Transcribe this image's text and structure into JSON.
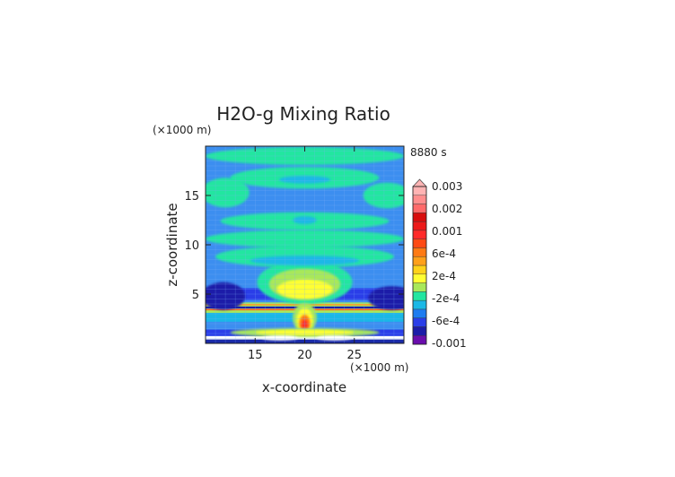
{
  "chart_data": {
    "type": "heatmap",
    "title": "H2O-g Mixing Ratio",
    "time_label": "8880 s",
    "x_unit": "(×1000 m)",
    "y_unit": "(×1000 m)",
    "xlabel": "x-coordinate",
    "ylabel": "z-coordinate",
    "xlim": [
      10,
      30
    ],
    "ylim": [
      0,
      20
    ],
    "x_ticks": [
      "15",
      "20",
      "25"
    ],
    "y_ticks": [
      "5",
      "10",
      "15"
    ],
    "colorbar": {
      "labels": [
        "0.003",
        "0.002",
        "0.001",
        "6e-4",
        "2e-4",
        "-2e-4",
        "-6e-4",
        "-0.001"
      ],
      "colors": [
        "#6a0dad",
        "#1c1ca8",
        "#2a3ee8",
        "#1e7cf0",
        "#1ab8e6",
        "#22e6a0",
        "#a8e85a",
        "#ffff33",
        "#ffd21a",
        "#ffa01a",
        "#ff7a14",
        "#ff4a14",
        "#ff2a2a",
        "#ec1a1a",
        "#d80e0e",
        "#ff6a6a",
        "#ff8e8e",
        "#ffb4b4"
      ]
    },
    "field": {
      "background": "#3c8ef0",
      "bands": [
        {
          "name": "surface-white",
          "z": [
            0.35,
            0.75
          ],
          "color": "#ffffff"
        },
        {
          "name": "surface-low",
          "z": [
            0.0,
            0.4
          ],
          "color": "#1a2aa8"
        },
        {
          "name": "low-blue",
          "z": [
            0.75,
            1.4
          ],
          "color": "#2a3ee8"
        },
        {
          "name": "cyan-lower",
          "z": [
            2.2,
            3.1
          ],
          "color": "#1ab8e6"
        },
        {
          "name": "band-3",
          "z": [
            3.1,
            3.55
          ],
          "color": "#a8e85a"
        },
        {
          "name": "band-3b",
          "z": [
            3.35,
            3.5
          ],
          "color": "#ff7a14"
        },
        {
          "name": "band-3c",
          "z": [
            3.42,
            3.48
          ],
          "color": "#ff2a2a"
        },
        {
          "name": "band-4",
          "z": [
            3.55,
            3.75
          ],
          "color": "#1c1ca8"
        },
        {
          "name": "band-5",
          "z": [
            3.75,
            4.15
          ],
          "color": "#a8e85a"
        },
        {
          "name": "band-5b",
          "z": [
            3.85,
            4.0
          ],
          "color": "#ffa01a"
        },
        {
          "name": "mid-dark",
          "z": [
            4.4,
            5.6
          ],
          "color": "#2a3ee8"
        }
      ],
      "blobs": [
        {
          "name": "plume-cyan",
          "x": 20.0,
          "z": 6.2,
          "rx": 4.8,
          "rz": 2.2,
          "color": "#22e6a0"
        },
        {
          "name": "plume-green",
          "x": 20.0,
          "z": 6.0,
          "rx": 3.6,
          "rz": 1.6,
          "color": "#a8e85a"
        },
        {
          "name": "plume-yellow",
          "x": 20.0,
          "z": 5.5,
          "rx": 2.8,
          "rz": 1.0,
          "color": "#ffff33"
        },
        {
          "name": "stem-green",
          "x": 20.0,
          "z": 2.6,
          "rx": 1.2,
          "rz": 1.5,
          "color": "#a8e85a"
        },
        {
          "name": "stem-yellow",
          "x": 20.0,
          "z": 2.4,
          "rx": 0.8,
          "rz": 1.2,
          "color": "#ffff33"
        },
        {
          "name": "stem-orange",
          "x": 20.0,
          "z": 2.0,
          "rx": 0.55,
          "rz": 0.9,
          "color": "#ff7a14"
        },
        {
          "name": "stem-red",
          "x": 20.0,
          "z": 1.8,
          "rx": 0.3,
          "rz": 0.6,
          "color": "#ff2a2a"
        },
        {
          "name": "lower-wide",
          "x": 20.0,
          "z": 1.1,
          "rx": 7.5,
          "rz": 0.45,
          "color": "#a8e85a"
        },
        {
          "name": "lower-wide-y",
          "x": 20.0,
          "z": 1.1,
          "rx": 5.0,
          "rz": 0.28,
          "color": "#ffff33"
        },
        {
          "name": "lower-white-l",
          "x": 17.5,
          "z": 0.55,
          "rx": 1.8,
          "rz": 0.25,
          "color": "#ffffff"
        },
        {
          "name": "lower-white-r",
          "x": 23.0,
          "z": 0.55,
          "rx": 1.8,
          "rz": 0.25,
          "color": "#ffffff"
        },
        {
          "name": "dark-left",
          "x": 11.8,
          "z": 4.8,
          "rx": 2.2,
          "rz": 1.4,
          "color": "#1c1ca8"
        },
        {
          "name": "dark-right",
          "x": 28.8,
          "z": 4.6,
          "rx": 2.4,
          "rz": 1.2,
          "color": "#1c1ca8"
        },
        {
          "name": "green-up-1",
          "x": 20.0,
          "z": 19.0,
          "rx": 10.0,
          "rz": 0.9,
          "color": "#22e6a0"
        },
        {
          "name": "green-up-2",
          "x": 20.0,
          "z": 16.8,
          "rx": 7.5,
          "rz": 1.1,
          "color": "#22e6a0"
        },
        {
          "name": "cyan-up-2",
          "x": 20.0,
          "z": 16.6,
          "rx": 2.6,
          "rz": 0.4,
          "color": "#1ab8e6"
        },
        {
          "name": "green-left-1",
          "x": 12.0,
          "z": 15.3,
          "rx": 2.4,
          "rz": 1.5,
          "color": "#22e6a0"
        },
        {
          "name": "green-right-1",
          "x": 28.3,
          "z": 15.0,
          "rx": 2.4,
          "rz": 1.3,
          "color": "#22e6a0"
        },
        {
          "name": "green-mid-1",
          "x": 20.0,
          "z": 12.4,
          "rx": 8.5,
          "rz": 0.9,
          "color": "#22e6a0"
        },
        {
          "name": "cyan-mid-1",
          "x": 20.0,
          "z": 12.5,
          "rx": 1.2,
          "rz": 0.4,
          "color": "#1ab8e6"
        },
        {
          "name": "green-mid-2",
          "x": 20.0,
          "z": 10.6,
          "rx": 10.0,
          "rz": 0.9,
          "color": "#22e6a0"
        },
        {
          "name": "green-mid-3",
          "x": 20.0,
          "z": 8.8,
          "rx": 9.0,
          "rz": 1.1,
          "color": "#22e6a0"
        },
        {
          "name": "cyan-mid-3",
          "x": 20.0,
          "z": 8.4,
          "rx": 5.5,
          "rz": 0.5,
          "color": "#1ab8e6"
        }
      ]
    },
    "grid": true,
    "colors": {
      "axis": "#222222",
      "grid": "#7faff5",
      "title": "#555555"
    }
  }
}
